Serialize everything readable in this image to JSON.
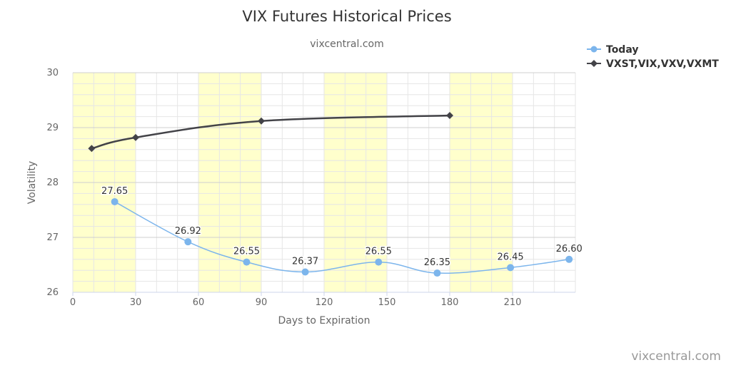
{
  "chart_data": {
    "type": "line",
    "title": "VIX Futures Historical Prices",
    "subtitle": "vixcentral.com",
    "xlabel": "Days to Expiration",
    "ylabel": "Volatility",
    "xlim": [
      0,
      240
    ],
    "ylim": [
      26,
      30
    ],
    "x_ticks": [
      "0",
      "30",
      "60",
      "90",
      "120",
      "150",
      "180",
      "210"
    ],
    "y_ticks": [
      "26",
      "27",
      "28",
      "29",
      "30"
    ],
    "shaded_bands": [
      [
        0,
        30
      ],
      [
        60,
        90
      ],
      [
        120,
        150
      ],
      [
        180,
        210
      ]
    ],
    "legend_position": "top-right",
    "series": [
      {
        "name": "Today",
        "color": "#7cb5ec",
        "marker": "circle",
        "x": [
          20,
          55,
          83,
          111,
          146,
          174,
          209,
          237
        ],
        "values": [
          27.65,
          26.92,
          26.55,
          26.37,
          26.55,
          26.35,
          26.45,
          26.6
        ],
        "labels": [
          "27.65",
          "26.92",
          "26.55",
          "26.37",
          "26.55",
          "26.35",
          "26.45",
          "26.60"
        ]
      },
      {
        "name": "VXST,VIX,VXV,VXMT",
        "color": "#434348",
        "marker": "diamond",
        "x": [
          9,
          30,
          90,
          180
        ],
        "values": [
          28.62,
          28.82,
          29.12,
          29.22
        ]
      }
    ]
  },
  "credit": "vixcentral.com"
}
